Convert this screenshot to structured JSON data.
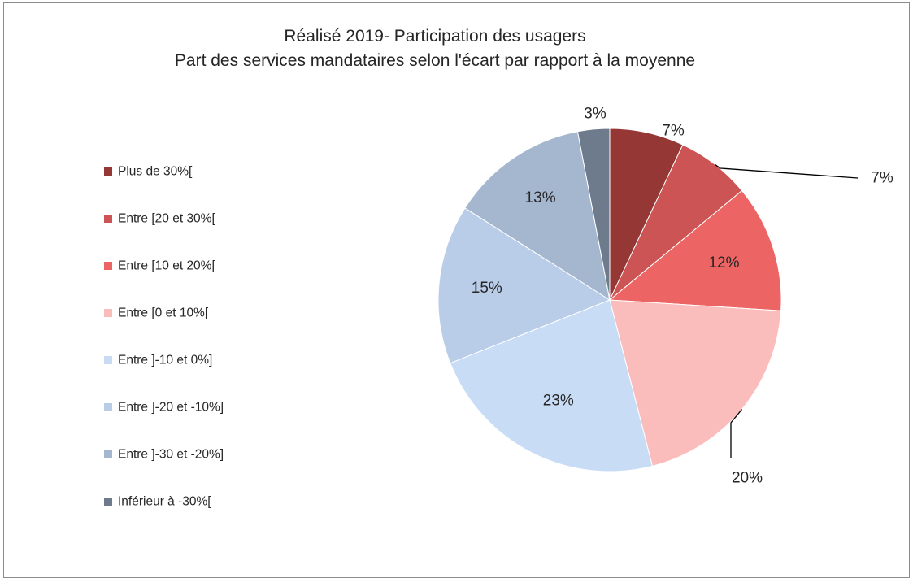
{
  "chart_data": {
    "type": "pie",
    "title": "Réalisé 2019- Participation des usagers",
    "subtitle": "Part des services mandataires selon l'écart par rapport à la moyenne",
    "slices": [
      {
        "label": "Plus de 30%[",
        "value": 7,
        "display": "7%",
        "color": "#953735"
      },
      {
        "label": "Entre [20 et 30%[",
        "value": 7,
        "display": "7%",
        "color": "#cd5454"
      },
      {
        "label": "Entre [10 et 20%[",
        "value": 12,
        "display": "12%",
        "color": "#ed6464"
      },
      {
        "label": "Entre [0 et 10%[",
        "value": 20,
        "display": "20%",
        "color": "#fbbcbc"
      },
      {
        "label": "Entre ]-10 et 0%]",
        "value": 23,
        "display": "23%",
        "color": "#c9dcf6"
      },
      {
        "label": "Entre ]-20 et -10%]",
        "value": 15,
        "display": "15%",
        "color": "#b9cde9"
      },
      {
        "label": "Entre ]-30 et -20%]",
        "value": 13,
        "display": "13%",
        "color": "#a5b6cf"
      },
      {
        "label": "Inférieur à -30%[",
        "value": 3,
        "display": "3%",
        "color": "#6d7b8d"
      }
    ],
    "legend_position": "left",
    "start_angle": "12 o'clock",
    "direction": "clockwise"
  }
}
